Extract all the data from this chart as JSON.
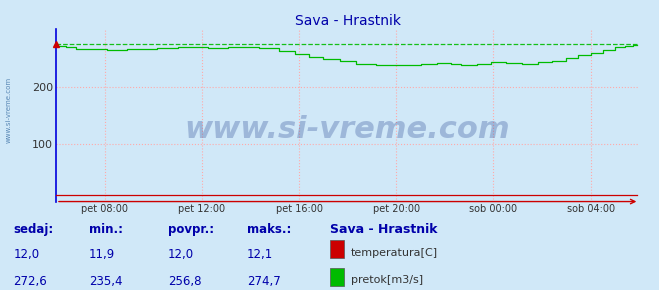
{
  "title": "Sava - Hrastnik",
  "title_color": "#0000aa",
  "bg_color": "#d0e8f8",
  "plot_bg_color": "#d0e8f8",
  "grid_color": "#ffaaaa",
  "grid_linestyle": "dotted",
  "xlim": [
    0,
    288
  ],
  "ylim": [
    0,
    300
  ],
  "yticks": [
    100,
    200
  ],
  "x_tick_positions": [
    24,
    72,
    120,
    168,
    216,
    264
  ],
  "x_tick_labels": [
    "pet 08:00",
    "pet 12:00",
    "pet 16:00",
    "pet 20:00",
    "sob 00:00",
    "sob 04:00"
  ],
  "pretok_color": "#00bb00",
  "temp_color": "#cc0000",
  "pretok_max_value": 274.7,
  "spine_left_color": "#0000dd",
  "spine_bottom_color": "#cc0000",
  "watermark_text": "www.si-vreme.com",
  "watermark_color": "#1a3a8a",
  "watermark_alpha": 0.28,
  "watermark_fontsize": 22,
  "sidebar_text": "www.si-vreme.com",
  "sidebar_color": "#4477aa",
  "legend_title": "Sava - Hrastnik",
  "stats_labels": [
    "sedaj:",
    "min.:",
    "povpr.:",
    "maks.:"
  ],
  "stats_temp": [
    "12,0",
    "11,9",
    "12,0",
    "12,1"
  ],
  "stats_pretok": [
    "272,6",
    "235,4",
    "256,8",
    "274,7"
  ],
  "label_temp": "temperatura[C]",
  "label_pretok": "pretok[m3/s]",
  "stats_color": "#0000aa",
  "stats_value_color": "#0000aa"
}
